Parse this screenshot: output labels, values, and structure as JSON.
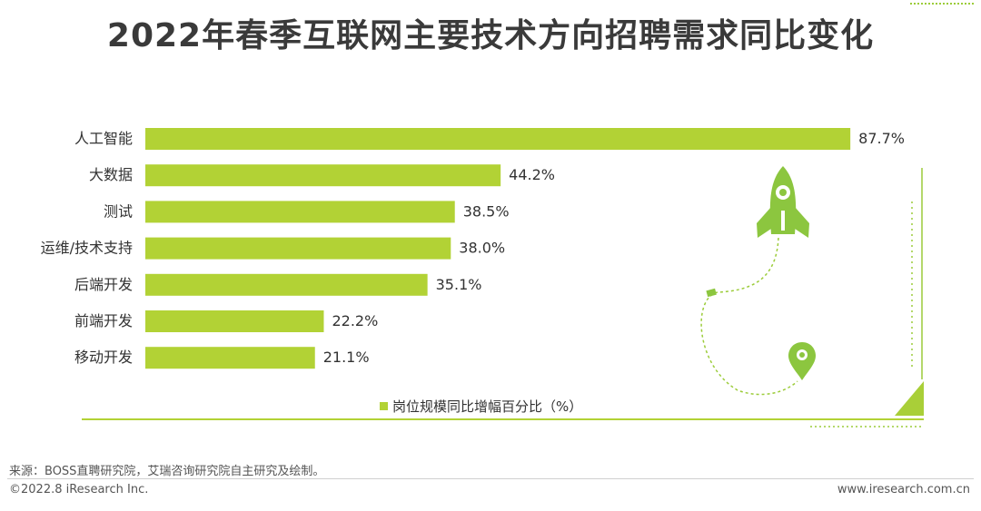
{
  "page": {
    "title": "2022年春季互联网主要技术方向招聘需求同比变化",
    "source": "来源：BOSS直聘研究院，艾瑞咨询研究院自主研究及绘制。",
    "copyright": "©2022.8 iResearch Inc.",
    "website": "www.iresearch.com.cn"
  },
  "colors": {
    "bar": "#b2d235",
    "accent": "#9ccc3a",
    "text": "#333333",
    "title": "#3a3a3a",
    "rocket": "#8cc63f"
  },
  "icons": {
    "rocket": "rocket-icon",
    "location": "location-pin-icon",
    "flag": "flag-icon",
    "corner": "corner-triangle-icon"
  },
  "chart_data": {
    "type": "bar",
    "orientation": "horizontal",
    "categories": [
      "人工智能",
      "大数据",
      "测试",
      "运维/技术支持",
      "后端开发",
      "前端开发",
      "移动开发"
    ],
    "series": [
      {
        "name": "岗位规模同比增幅百分比（%）",
        "values": [
          87.7,
          44.2,
          38.5,
          38.0,
          35.1,
          22.2,
          21.1
        ],
        "labels": [
          "87.7%",
          "44.2%",
          "38.5%",
          "38.0%",
          "35.1%",
          "22.2%",
          "21.1%"
        ]
      }
    ],
    "xlim": [
      0,
      100
    ],
    "grid": false,
    "legend_position": "bottom-center"
  }
}
